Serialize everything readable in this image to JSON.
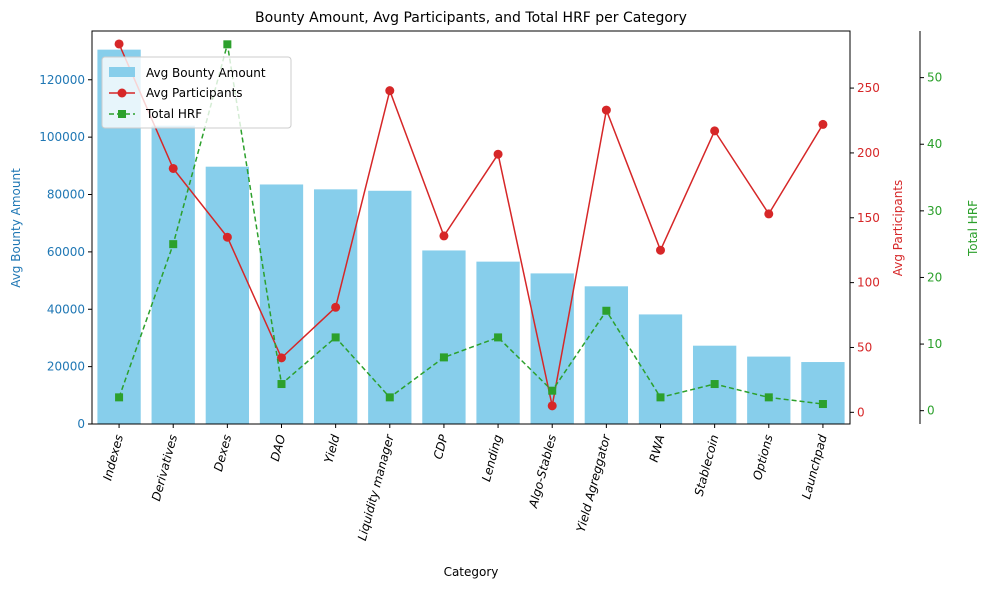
{
  "chart_data": {
    "type": "bar",
    "title": "Bounty Amount, Avg Participants, and Total HRF per Category",
    "xlabel": "Category",
    "categories": [
      "Indexes",
      "Derivatives",
      "Dexes",
      "DAO",
      "Yield",
      "Liquidity manager",
      "CDP",
      "Lending",
      "Algo-Stables",
      "Yield Agreggator",
      "RWA",
      "Stablecoin",
      "Options",
      "Launchpad"
    ],
    "grid": false,
    "legend_position": "top-left",
    "axes": {
      "bounty": {
        "label": "Avg Bounty Amount",
        "ylim": [
          0,
          137000
        ],
        "ticks": [
          0,
          20000,
          40000,
          60000,
          80000,
          100000,
          120000
        ],
        "color": "#1f77b4"
      },
      "participants": {
        "label": "Avg Participants",
        "ylim": [
          -9,
          294
        ],
        "ticks": [
          0,
          50,
          100,
          150,
          200,
          250
        ],
        "color": "#d62728"
      },
      "hrf": {
        "label": "Total HRF",
        "ylim": [
          -2,
          57
        ],
        "ticks": [
          0,
          10,
          20,
          30,
          40,
          50
        ],
        "color": "#2ca02c"
      }
    },
    "series": [
      {
        "name": "Avg Bounty Amount",
        "kind": "bar",
        "axis": "bounty",
        "color": "#87ceeb",
        "values": [
          130500,
          104000,
          89700,
          83500,
          81800,
          81300,
          60500,
          56600,
          52500,
          48000,
          38200,
          27300,
          23500,
          21600
        ]
      },
      {
        "name": "Avg Participants",
        "kind": "line",
        "axis": "participants",
        "color": "#d62728",
        "marker": "circle",
        "dash": "solid",
        "values": [
          284,
          188,
          135,
          42,
          81,
          248,
          136,
          199,
          5,
          233,
          125,
          217,
          153,
          222
        ]
      },
      {
        "name": "Total HRF",
        "kind": "line",
        "axis": "hrf",
        "color": "#2ca02c",
        "marker": "square",
        "dash": "dashed",
        "values": [
          2,
          25,
          55,
          4,
          11,
          2,
          8,
          11,
          3,
          15,
          2,
          4,
          2,
          1
        ]
      }
    ]
  }
}
